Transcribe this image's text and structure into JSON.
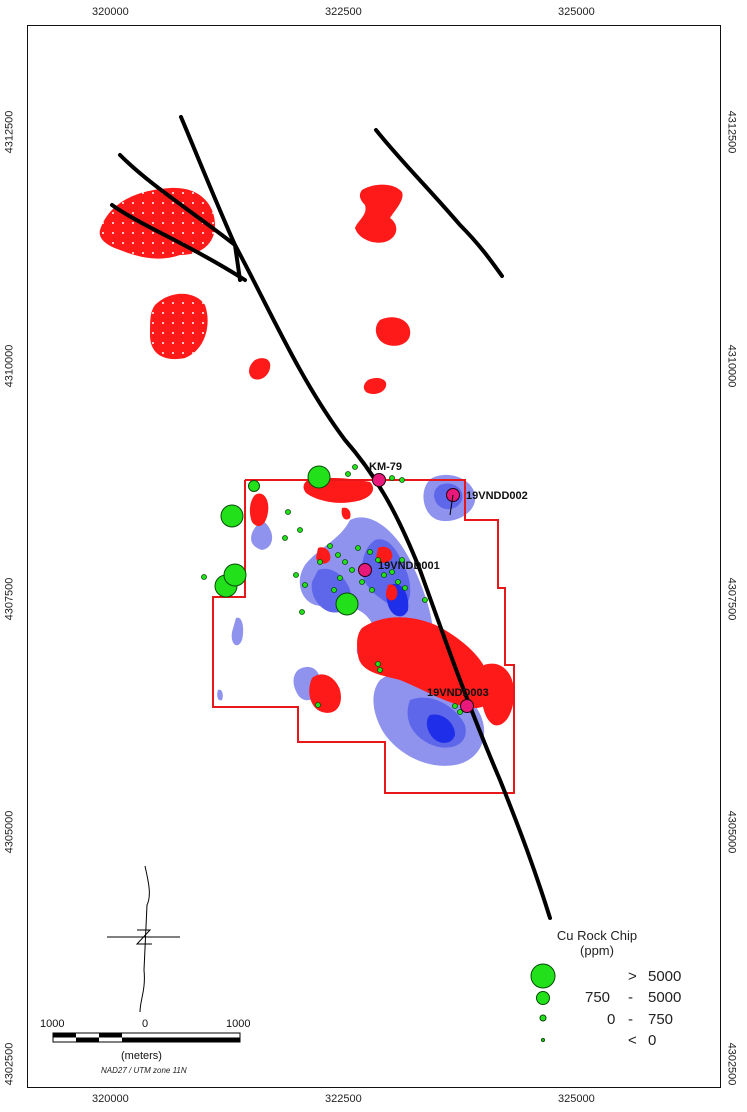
{
  "map": {
    "x_ticks": [
      "320000",
      "322500",
      "325000"
    ],
    "y_ticks": [
      "4312500",
      "4310000",
      "4307500",
      "4305000",
      "4302500"
    ],
    "wells": [
      {
        "name": "KM-79"
      },
      {
        "name": "19VNDD002"
      },
      {
        "name": "19VNDD001"
      },
      {
        "name": "19VNDD003"
      }
    ],
    "legend": {
      "title_line1": "Cu Rock Chip",
      "title_line2": "(ppm)",
      "rows": [
        {
          "op": ">",
          "low": "",
          "high": "5000"
        },
        {
          "op": "",
          "low": "750",
          "high": "5000"
        },
        {
          "op": "",
          "low": "0",
          "high": "750"
        },
        {
          "op": "<",
          "low": "",
          "high": "0"
        }
      ]
    },
    "scale": {
      "labels": [
        "1000",
        "0",
        "1000"
      ],
      "units": "(meters)",
      "datum": "NAD27 / UTM zone 11N"
    },
    "colors": {
      "anomaly_red": "#ff1a1a",
      "anomaly_blue_light": "#8f93ee",
      "anomaly_blue_dark": "#1f2ee8",
      "rock_chip_green": "#22e11b",
      "drillhole_pink": "#e8197a",
      "boundary": "#e8171a",
      "fault": "#000000"
    }
  }
}
